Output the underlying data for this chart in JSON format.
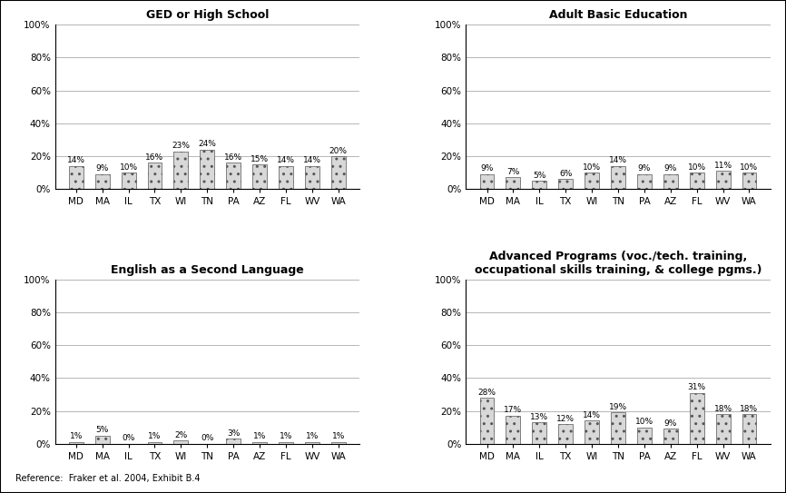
{
  "categories": [
    "MD",
    "MA",
    "IL",
    "TX",
    "WI",
    "TN",
    "PA",
    "AZ",
    "FL",
    "WV",
    "WA"
  ],
  "ged": [
    14,
    9,
    10,
    16,
    23,
    24,
    16,
    15,
    14,
    14,
    20
  ],
  "abe": [
    9,
    7,
    5,
    6,
    10,
    14,
    9,
    9,
    10,
    11,
    10
  ],
  "esl": [
    1,
    5,
    0,
    1,
    2,
    0,
    3,
    1,
    1,
    1,
    1
  ],
  "adv": [
    28,
    17,
    13,
    12,
    14,
    19,
    10,
    9,
    31,
    18,
    18
  ],
  "titles": [
    "GED or High School",
    "Adult Basic Education",
    "English as a Second Language",
    "Advanced Programs (voc./tech. training,\noccupational skills training, & college pgms.)"
  ],
  "bar_facecolor": "#d8d8d8",
  "bar_hatch": "..",
  "bar_edgecolor": "#555555",
  "background_color": "#ffffff",
  "reference": "Reference:  Fraker et al. 2004, Exhibit B.4",
  "ylim": [
    0,
    100
  ],
  "yticks": [
    0,
    20,
    40,
    60,
    80,
    100
  ],
  "ytick_labels": [
    "0%",
    "20%",
    "40%",
    "60%",
    "80%",
    "100%"
  ],
  "grid_color": "#999999",
  "label_fontsize": 7,
  "title_fontsize": 9,
  "tick_fontsize": 7.5,
  "annot_fontsize": 6.5,
  "bar_width": 0.55
}
